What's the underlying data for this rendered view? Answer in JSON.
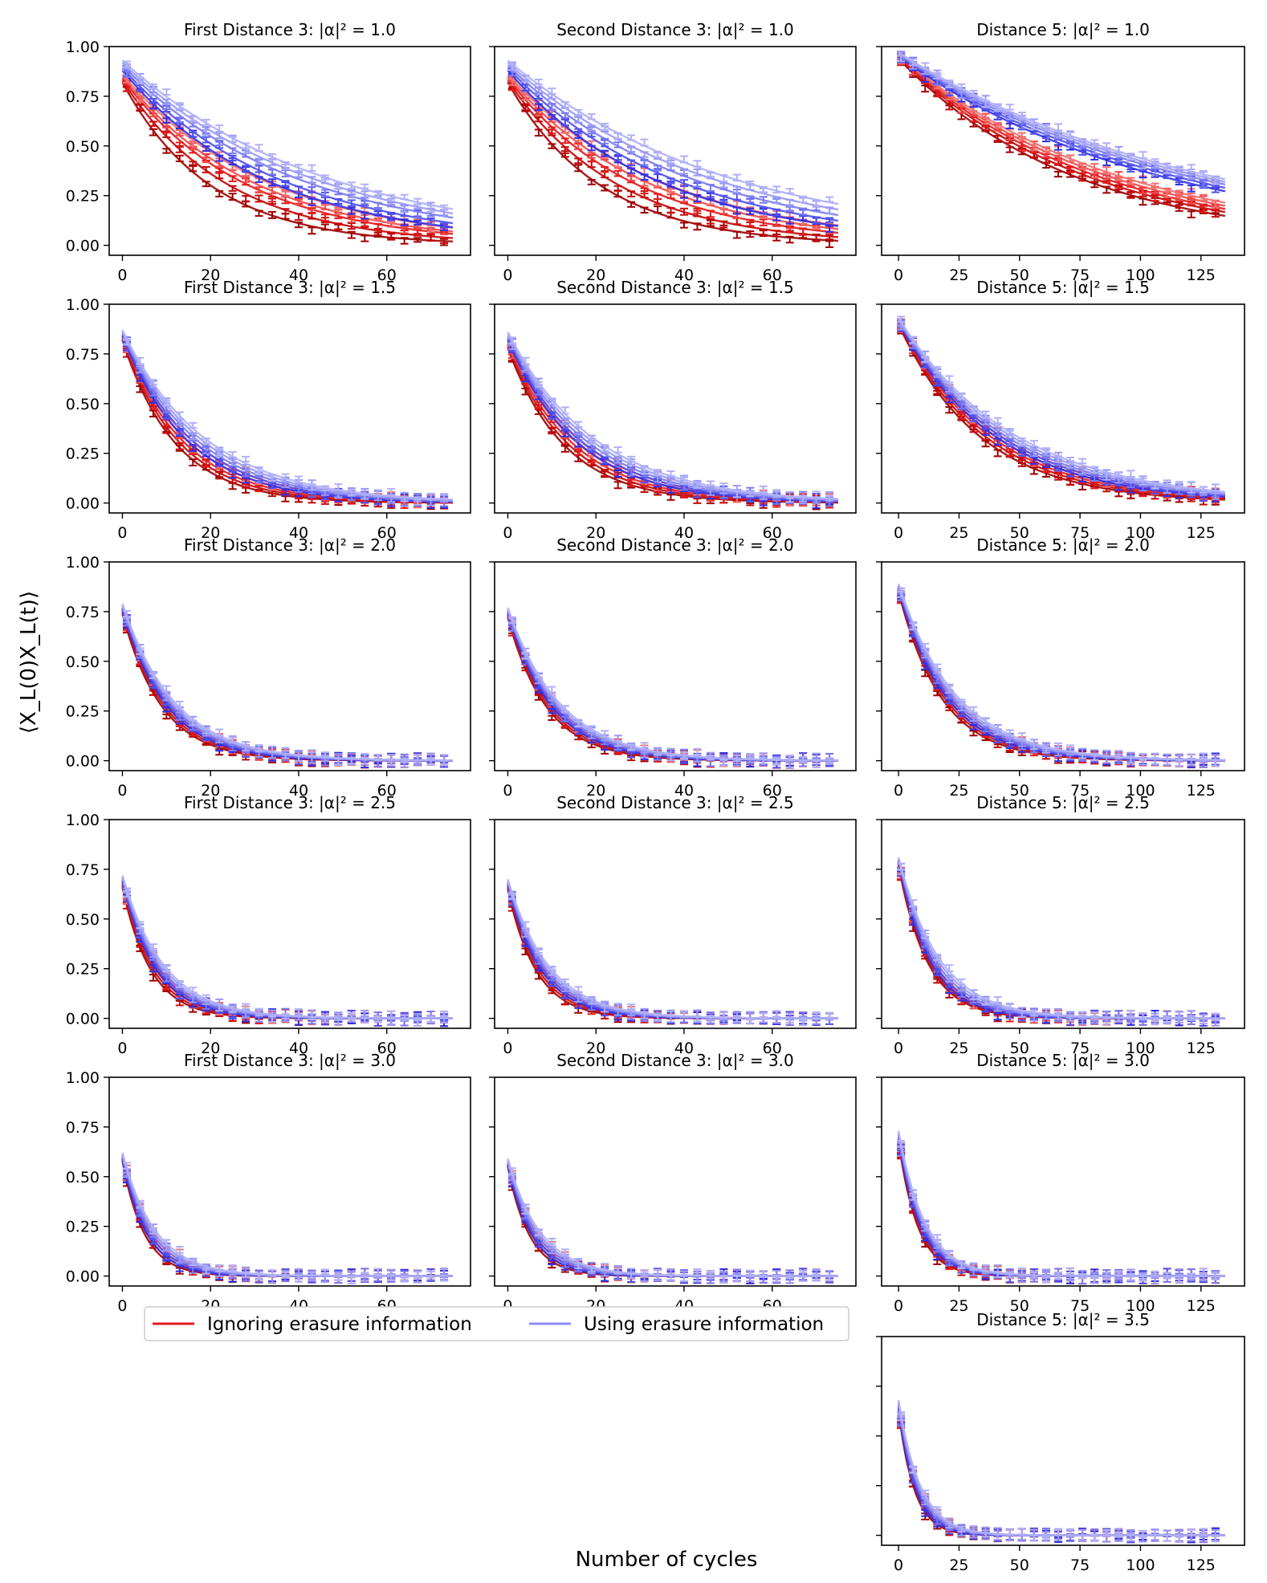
{
  "figure": {
    "ylabel": "⟨X_L(0)X_L(t)⟩",
    "xlabel": "Number of cycles",
    "legend": [
      {
        "label": "Ignoring erasure information",
        "color": "#e31a1c"
      },
      {
        "label": "Using erasure information",
        "color": "#8c8cf5"
      }
    ],
    "colors": {
      "red_family": [
        "#a00000",
        "#c40808",
        "#e31a1c",
        "#f04a4a",
        "#f27070"
      ],
      "blue_family": [
        "#3030e6",
        "#5050ee",
        "#7a7af2",
        "#9a9af5",
        "#b0b0f8"
      ]
    }
  },
  "chart_data": [
    {
      "type": "line",
      "title": "First Distance 3: |α|² = 1.0",
      "xlim": [
        -3,
        79
      ],
      "ylim": [
        -0.05,
        1.0
      ],
      "xticks": [
        "0",
        "20",
        "40",
        "60"
      ],
      "yticks": [
        "0.00",
        "0.25",
        "0.50",
        "0.75",
        "1.00"
      ],
      "x_max": 75,
      "start": {
        "red": [
          0.82,
          0.86
        ],
        "blue": [
          0.88,
          0.93
        ]
      },
      "tau": {
        "red": [
          20,
          24,
          28,
          30,
          33
        ],
        "blue": [
          33,
          36,
          40,
          43,
          46
        ]
      }
    },
    {
      "type": "line",
      "title": "Second Distance 3: |α|² = 1.0",
      "xlim": [
        -3,
        79
      ],
      "ylim": [
        -0.05,
        1.0
      ],
      "xticks": [
        "0",
        "20",
        "40",
        "60"
      ],
      "yticks": [
        "0.00",
        "0.25",
        "0.50",
        "0.75",
        "1.00"
      ],
      "x_max": 75,
      "start": {
        "red": [
          0.82,
          0.86
        ],
        "blue": [
          0.88,
          0.93
        ]
      },
      "tau": {
        "red": [
          21,
          25,
          29,
          32,
          35
        ],
        "blue": [
          34,
          38,
          42,
          46,
          50
        ]
      }
    },
    {
      "type": "line",
      "title": "Distance 5: |α|² = 1.0",
      "xlim": [
        -7,
        143
      ],
      "ylim": [
        -0.05,
        1.0
      ],
      "xticks": [
        "0",
        "25",
        "50",
        "75",
        "100",
        "125"
      ],
      "yticks": [
        "0.00",
        "0.25",
        "0.50",
        "0.75",
        "1.00"
      ],
      "x_max": 135,
      "start": {
        "red": [
          0.94,
          0.96
        ],
        "blue": [
          0.95,
          0.97
        ]
      },
      "tau": {
        "red": [
          73,
          78,
          82,
          86,
          90
        ],
        "blue": [
          108,
          113,
          118,
          122,
          126
        ]
      }
    },
    {
      "type": "line",
      "title": "First Distance 3: |α|² = 1.5",
      "xlim": [
        -3,
        79
      ],
      "ylim": [
        -0.05,
        1.0
      ],
      "xticks": [
        "0",
        "20",
        "40",
        "60"
      ],
      "yticks": [
        "0.00",
        "0.25",
        "0.50",
        "0.75",
        "1.00"
      ],
      "x_max": 75,
      "start": {
        "red": [
          0.82,
          0.84
        ],
        "blue": [
          0.84,
          0.87
        ]
      },
      "tau": {
        "red": [
          12,
          13,
          14,
          15,
          16
        ],
        "blue": [
          15,
          16,
          17,
          18,
          19
        ]
      }
    },
    {
      "type": "line",
      "title": "Second Distance 3: |α|² = 1.5",
      "xlim": [
        -3,
        79
      ],
      "ylim": [
        -0.05,
        1.0
      ],
      "xticks": [
        "0",
        "20",
        "40",
        "60"
      ],
      "yticks": [
        "0.00",
        "0.25",
        "0.50",
        "0.75",
        "1.00"
      ],
      "x_max": 75,
      "start": {
        "red": [
          0.78,
          0.82
        ],
        "blue": [
          0.82,
          0.86
        ]
      },
      "tau": {
        "red": [
          13,
          14,
          15,
          16,
          17
        ],
        "blue": [
          16,
          17,
          18,
          19,
          20
        ]
      }
    },
    {
      "type": "line",
      "title": "Distance 5: |α|² = 1.5",
      "xlim": [
        -7,
        143
      ],
      "ylim": [
        -0.05,
        1.0
      ],
      "xticks": [
        "0",
        "25",
        "50",
        "75",
        "100",
        "125"
      ],
      "yticks": [
        "0.00",
        "0.25",
        "0.50",
        "0.75",
        "1.00"
      ],
      "x_max": 135,
      "start": {
        "red": [
          0.9,
          0.92
        ],
        "blue": [
          0.91,
          0.93
        ]
      },
      "tau": {
        "red": [
          34,
          36,
          38,
          40,
          42
        ],
        "blue": [
          40,
          42,
          44,
          46,
          48
        ]
      }
    },
    {
      "type": "line",
      "title": "First Distance 3: |α|² = 2.0",
      "xlim": [
        -3,
        79
      ],
      "ylim": [
        -0.05,
        1.0
      ],
      "xticks": [
        "0",
        "20",
        "40",
        "60"
      ],
      "yticks": [
        "0.00",
        "0.25",
        "0.50",
        "0.75",
        "1.00"
      ],
      "x_max": 75,
      "start": {
        "red": [
          0.74,
          0.77
        ],
        "blue": [
          0.76,
          0.79
        ]
      },
      "tau": {
        "red": [
          9,
          9.5,
          10,
          10.5,
          11
        ],
        "blue": [
          10,
          10.5,
          11,
          11.5,
          12
        ]
      }
    },
    {
      "type": "line",
      "title": "Second Distance 3: |α|² = 2.0",
      "xlim": [
        -3,
        79
      ],
      "ylim": [
        -0.05,
        1.0
      ],
      "xticks": [
        "0",
        "20",
        "40",
        "60"
      ],
      "yticks": [
        "0.00",
        "0.25",
        "0.50",
        "0.75",
        "1.00"
      ],
      "x_max": 75,
      "start": {
        "red": [
          0.72,
          0.75
        ],
        "blue": [
          0.74,
          0.77
        ]
      },
      "tau": {
        "red": [
          9,
          9.5,
          10,
          10.5,
          11
        ],
        "blue": [
          10,
          10.5,
          11,
          11.5,
          12
        ]
      }
    },
    {
      "type": "line",
      "title": "Distance 5: |α|² = 2.0",
      "xlim": [
        -7,
        143
      ],
      "ylim": [
        -0.05,
        1.0
      ],
      "xticks": [
        "0",
        "25",
        "50",
        "75",
        "100",
        "125"
      ],
      "yticks": [
        "0.00",
        "0.25",
        "0.50",
        "0.75",
        "1.00"
      ],
      "x_max": 135,
      "start": {
        "red": [
          0.85,
          0.88
        ],
        "blue": [
          0.86,
          0.89
        ]
      },
      "tau": {
        "red": [
          18,
          19,
          20,
          21,
          22
        ],
        "blue": [
          20,
          21,
          22,
          23,
          24
        ]
      }
    },
    {
      "type": "line",
      "title": "First Distance 3: |α|² = 2.5",
      "xlim": [
        -3,
        79
      ],
      "ylim": [
        -0.05,
        1.0
      ],
      "xticks": [
        "0",
        "20",
        "40",
        "60"
      ],
      "yticks": [
        "0.00",
        "0.25",
        "0.50",
        "0.75",
        "1.00"
      ],
      "x_max": 75,
      "start": {
        "red": [
          0.66,
          0.69
        ],
        "blue": [
          0.69,
          0.72
        ]
      },
      "tau": {
        "red": [
          6.5,
          7,
          7.5,
          8,
          8.5
        ],
        "blue": [
          7.5,
          8,
          8.5,
          9,
          9.5
        ]
      }
    },
    {
      "type": "line",
      "title": "Second Distance 3: |α|² = 2.5",
      "xlim": [
        -3,
        79
      ],
      "ylim": [
        -0.05,
        1.0
      ],
      "xticks": [
        "0",
        "20",
        "40",
        "60"
      ],
      "yticks": [
        "0.00",
        "0.25",
        "0.50",
        "0.75",
        "1.00"
      ],
      "x_max": 75,
      "start": {
        "red": [
          0.65,
          0.68
        ],
        "blue": [
          0.67,
          0.7
        ]
      },
      "tau": {
        "red": [
          6.5,
          7,
          7.5,
          8,
          8.5
        ],
        "blue": [
          7.5,
          8,
          8.5,
          9,
          9.5
        ]
      }
    },
    {
      "type": "line",
      "title": "Distance 5: |α|² = 2.5",
      "xlim": [
        -7,
        143
      ],
      "ylim": [
        -0.05,
        1.0
      ],
      "xticks": [
        "0",
        "25",
        "50",
        "75",
        "100",
        "125"
      ],
      "yticks": [
        "0.00",
        "0.25",
        "0.50",
        "0.75",
        "1.00"
      ],
      "x_max": 135,
      "start": {
        "red": [
          0.77,
          0.8
        ],
        "blue": [
          0.79,
          0.81
        ]
      },
      "tau": {
        "red": [
          12,
          12.5,
          13,
          13.5,
          14
        ],
        "blue": [
          13,
          14,
          15,
          16,
          17
        ]
      }
    },
    {
      "type": "line",
      "title": "First Distance 3: |α|² = 3.0",
      "xlim": [
        -3,
        79
      ],
      "ylim": [
        -0.05,
        1.0
      ],
      "xticks": [
        "0",
        "20",
        "40",
        "60"
      ],
      "yticks": [
        "0.00",
        "0.25",
        "0.50",
        "0.75",
        "1.00"
      ],
      "x_max": 75,
      "start": {
        "red": [
          0.58,
          0.61
        ],
        "blue": [
          0.59,
          0.62
        ]
      },
      "tau": {
        "red": [
          5,
          5.5,
          6,
          6.5,
          7
        ],
        "blue": [
          5.5,
          6,
          6.5,
          7,
          7.5
        ]
      }
    },
    {
      "type": "line",
      "title": "Second Distance 3: |α|² = 3.0",
      "xlim": [
        -3,
        79
      ],
      "ylim": [
        -0.05,
        1.0
      ],
      "xticks": [
        "0",
        "20",
        "40",
        "60"
      ],
      "yticks": [
        "0.00",
        "0.25",
        "0.50",
        "0.75",
        "1.00"
      ],
      "x_max": 75,
      "start": {
        "red": [
          0.55,
          0.58
        ],
        "blue": [
          0.56,
          0.59
        ]
      },
      "tau": {
        "red": [
          5,
          5.5,
          6,
          6.5,
          7
        ],
        "blue": [
          5.5,
          6,
          6.5,
          7,
          7.5
        ]
      }
    },
    {
      "type": "line",
      "title": "Distance 5: |α|² = 3.0",
      "xlim": [
        -7,
        143
      ],
      "ylim": [
        -0.05,
        1.0
      ],
      "xticks": [
        "0",
        "25",
        "50",
        "75",
        "100",
        "125"
      ],
      "yticks": [
        "0.00",
        "0.25",
        "0.50",
        "0.75",
        "1.00"
      ],
      "x_max": 135,
      "start": {
        "red": [
          0.68,
          0.72
        ],
        "blue": [
          0.69,
          0.73
        ]
      },
      "tau": {
        "red": [
          8,
          8.5,
          9,
          9.5,
          10
        ],
        "blue": [
          9,
          9.5,
          10,
          10.5,
          11
        ]
      }
    },
    {
      "type": "line",
      "title": "Distance 5: |α|² = 3.5",
      "xlim": [
        -7,
        143
      ],
      "ylim": [
        -0.05,
        1.0
      ],
      "xticks": [
        "0",
        "25",
        "50",
        "75",
        "100",
        "125"
      ],
      "yticks": [],
      "x_max": 135,
      "start": {
        "red": [
          0.63,
          0.67
        ],
        "blue": [
          0.64,
          0.68
        ]
      },
      "tau": {
        "red": [
          6.5,
          7,
          7.5,
          8,
          8.5
        ],
        "blue": [
          7,
          7.5,
          8,
          8.5,
          9
        ]
      }
    }
  ]
}
